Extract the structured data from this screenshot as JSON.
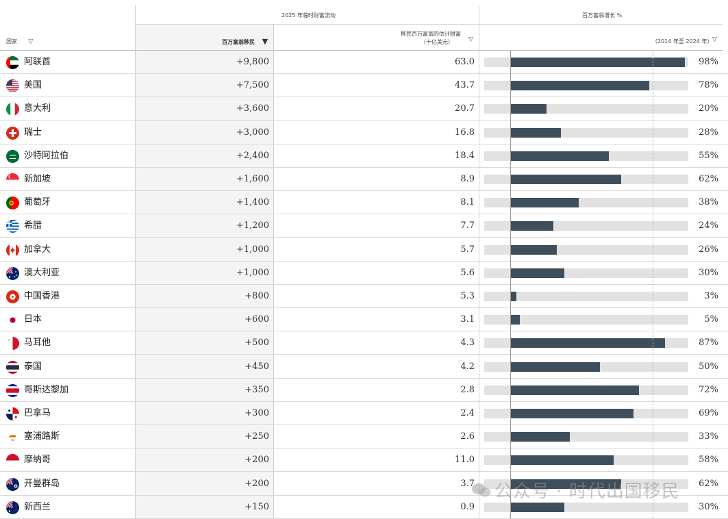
{
  "header": {
    "group_flow": "2025 年临时财富流动",
    "group_growth": "百万富翁增长 %",
    "col_country": "国家",
    "col_millionaires": "百万富翁移民",
    "col_wealth_line1": "移民百万富翁的估计财富",
    "col_wealth_line2": "（十亿美元）",
    "col_growth_period": "（2014 年至 2024 年）",
    "filter_glyph": "▽",
    "sort_glyph": "▼"
  },
  "watermark": "公众号 · 时代出国移民",
  "colors": {
    "bar": "#3f4e5b",
    "track": "#e2e2e3",
    "sorted_column_bg": "#f4f4f4"
  },
  "rows": [
    {
      "country": "阿联酋",
      "flag": "uae-flag",
      "migrants": "+9,800",
      "wealth": "63.0",
      "growth_label": "98%"
    },
    {
      "country": "美国",
      "flag": "usa-flag",
      "migrants": "+7,500",
      "wealth": "43.7",
      "growth_label": "78%"
    },
    {
      "country": "意大利",
      "flag": "italy-flag",
      "migrants": "+3,600",
      "wealth": "20.7",
      "growth_label": "20%"
    },
    {
      "country": "瑞士",
      "flag": "switzerland-flag",
      "migrants": "+3,000",
      "wealth": "16.8",
      "growth_label": "28%"
    },
    {
      "country": "沙特阿拉伯",
      "flag": "saudi-flag",
      "migrants": "+2,400",
      "wealth": "18.4",
      "growth_label": "55%"
    },
    {
      "country": "新加坡",
      "flag": "singapore-flag",
      "migrants": "+1,600",
      "wealth": "8.9",
      "growth_label": "62%"
    },
    {
      "country": "葡萄牙",
      "flag": "portugal-flag",
      "migrants": "+1,400",
      "wealth": "8.1",
      "growth_label": "38%"
    },
    {
      "country": "希腊",
      "flag": "greece-flag",
      "migrants": "+1,200",
      "wealth": "7.7",
      "growth_label": "24%"
    },
    {
      "country": "加拿大",
      "flag": "canada-flag",
      "migrants": "+1,000",
      "wealth": "5.7",
      "growth_label": "26%"
    },
    {
      "country": "澳大利亚",
      "flag": "australia-flag",
      "migrants": "+1,000",
      "wealth": "5.6",
      "growth_label": "30%"
    },
    {
      "country": "中国香港",
      "flag": "hongkong-flag",
      "migrants": "+800",
      "wealth": "5.3",
      "growth_label": "3%"
    },
    {
      "country": "日本",
      "flag": "japan-flag",
      "migrants": "+600",
      "wealth": "3.1",
      "growth_label": "5%"
    },
    {
      "country": "马耳他",
      "flag": "malta-flag",
      "migrants": "+500",
      "wealth": "4.3",
      "growth_label": "87%"
    },
    {
      "country": "泰国",
      "flag": "thailand-flag",
      "migrants": "+450",
      "wealth": "4.2",
      "growth_label": "50%"
    },
    {
      "country": "哥斯达黎加",
      "flag": "costarica-flag",
      "migrants": "+350",
      "wealth": "2.8",
      "growth_label": "72%"
    },
    {
      "country": "巴拿马",
      "flag": "panama-flag",
      "migrants": "+300",
      "wealth": "2.4",
      "growth_label": "69%"
    },
    {
      "country": "塞浦路斯",
      "flag": "cyprus-flag",
      "migrants": "+250",
      "wealth": "2.6",
      "growth_label": "33%"
    },
    {
      "country": "摩纳哥",
      "flag": "monaco-flag",
      "migrants": "+200",
      "wealth": "11.0",
      "growth_label": "58%"
    },
    {
      "country": "开曼群岛",
      "flag": "cayman-flag",
      "migrants": "+200",
      "wealth": "3.7",
      "growth_label": "62%"
    },
    {
      "country": "新西兰",
      "flag": "newzealand-flag",
      "migrants": "+150",
      "wealth": "0.9",
      "growth_label": "30%"
    }
  ],
  "chart_data": {
    "type": "table",
    "title": "2025 年临时财富流动",
    "columns": [
      "国家",
      "百万富翁移民",
      "移民百万富翁的估计财富（十亿美元）",
      "百万富翁增长 %（2014 年至 2024 年）"
    ],
    "sorted_by": "百万富翁移民",
    "categories": [
      "阿联酋",
      "美国",
      "意大利",
      "瑞士",
      "沙特阿拉伯",
      "新加坡",
      "葡萄牙",
      "希腊",
      "加拿大",
      "澳大利亚",
      "中国香港",
      "日本",
      "马耳他",
      "泰国",
      "哥斯达黎加",
      "巴拿马",
      "塞浦路斯",
      "摩纳哥",
      "开曼群岛",
      "新西兰"
    ],
    "series": [
      {
        "name": "百万富翁移民",
        "values": [
          9800,
          7500,
          3600,
          3000,
          2400,
          1600,
          1400,
          1200,
          1000,
          1000,
          800,
          600,
          500,
          450,
          350,
          300,
          250,
          200,
          200,
          150
        ]
      },
      {
        "name": "移民百万富翁的估计财富（十亿美元）",
        "values": [
          63.0,
          43.7,
          20.7,
          16.8,
          18.4,
          8.9,
          8.1,
          7.7,
          5.7,
          5.6,
          5.3,
          3.1,
          4.3,
          4.2,
          2.8,
          2.4,
          2.6,
          11.0,
          3.7,
          0.9
        ]
      },
      {
        "name": "百万富翁增长 %（2014 年至 2024 年）",
        "type": "bar",
        "values": [
          98,
          78,
          20,
          28,
          55,
          62,
          38,
          24,
          26,
          30,
          3,
          5,
          87,
          50,
          72,
          69,
          33,
          58,
          62,
          30
        ]
      }
    ],
    "growth_axis": {
      "xlim": [
        -15,
        100
      ],
      "zero_line": 0,
      "reference_line_dashed": 80
    }
  }
}
